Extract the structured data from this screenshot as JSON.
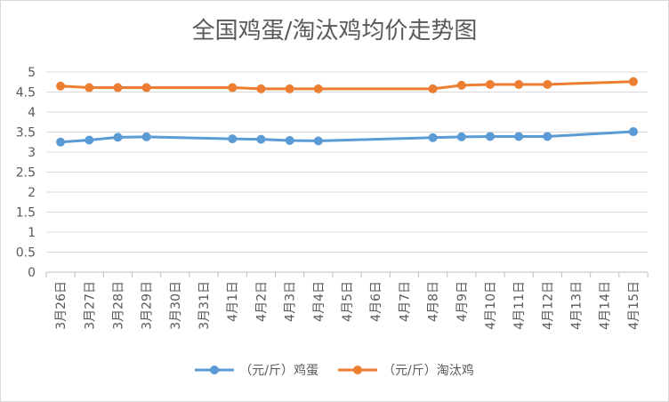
{
  "title": "全国鸡蛋/淘汰鸡均价走势图",
  "chart_data": {
    "type": "line",
    "title": "全国鸡蛋/淘汰鸡均价走势图",
    "categories": [
      "3月26日",
      "3月27日",
      "3月28日",
      "3月29日",
      "3月30日",
      "3月31日",
      "4月1日",
      "4月2日",
      "4月3日",
      "4月4日",
      "4月5日",
      "4月6日",
      "4月7日",
      "4月8日",
      "4月9日",
      "4月10日",
      "4月11日",
      "4月12日",
      "4月13日",
      "4月14日",
      "4月15日"
    ],
    "ylim": [
      0,
      5
    ],
    "yticks": [
      "0",
      "0.5",
      "1",
      "1.5",
      "2",
      "2.5",
      "3",
      "3.5",
      "4",
      "4.5",
      "5"
    ],
    "grid": true,
    "legend_position": "bottom",
    "series": [
      {
        "name": "（元/斤）鸡蛋",
        "color": "#5b9bd5",
        "values": [
          3.25,
          3.3,
          3.37,
          3.38,
          null,
          null,
          3.33,
          3.32,
          3.29,
          3.28,
          null,
          null,
          null,
          3.36,
          3.38,
          3.39,
          3.39,
          3.39,
          null,
          null,
          3.51
        ]
      },
      {
        "name": "（元/斤）淘汰鸡",
        "color": "#ed7d31",
        "values": [
          4.65,
          4.61,
          4.61,
          4.61,
          null,
          null,
          4.61,
          4.58,
          4.58,
          4.58,
          null,
          null,
          null,
          4.58,
          4.67,
          4.69,
          4.69,
          4.69,
          null,
          null,
          4.76
        ]
      }
    ]
  }
}
